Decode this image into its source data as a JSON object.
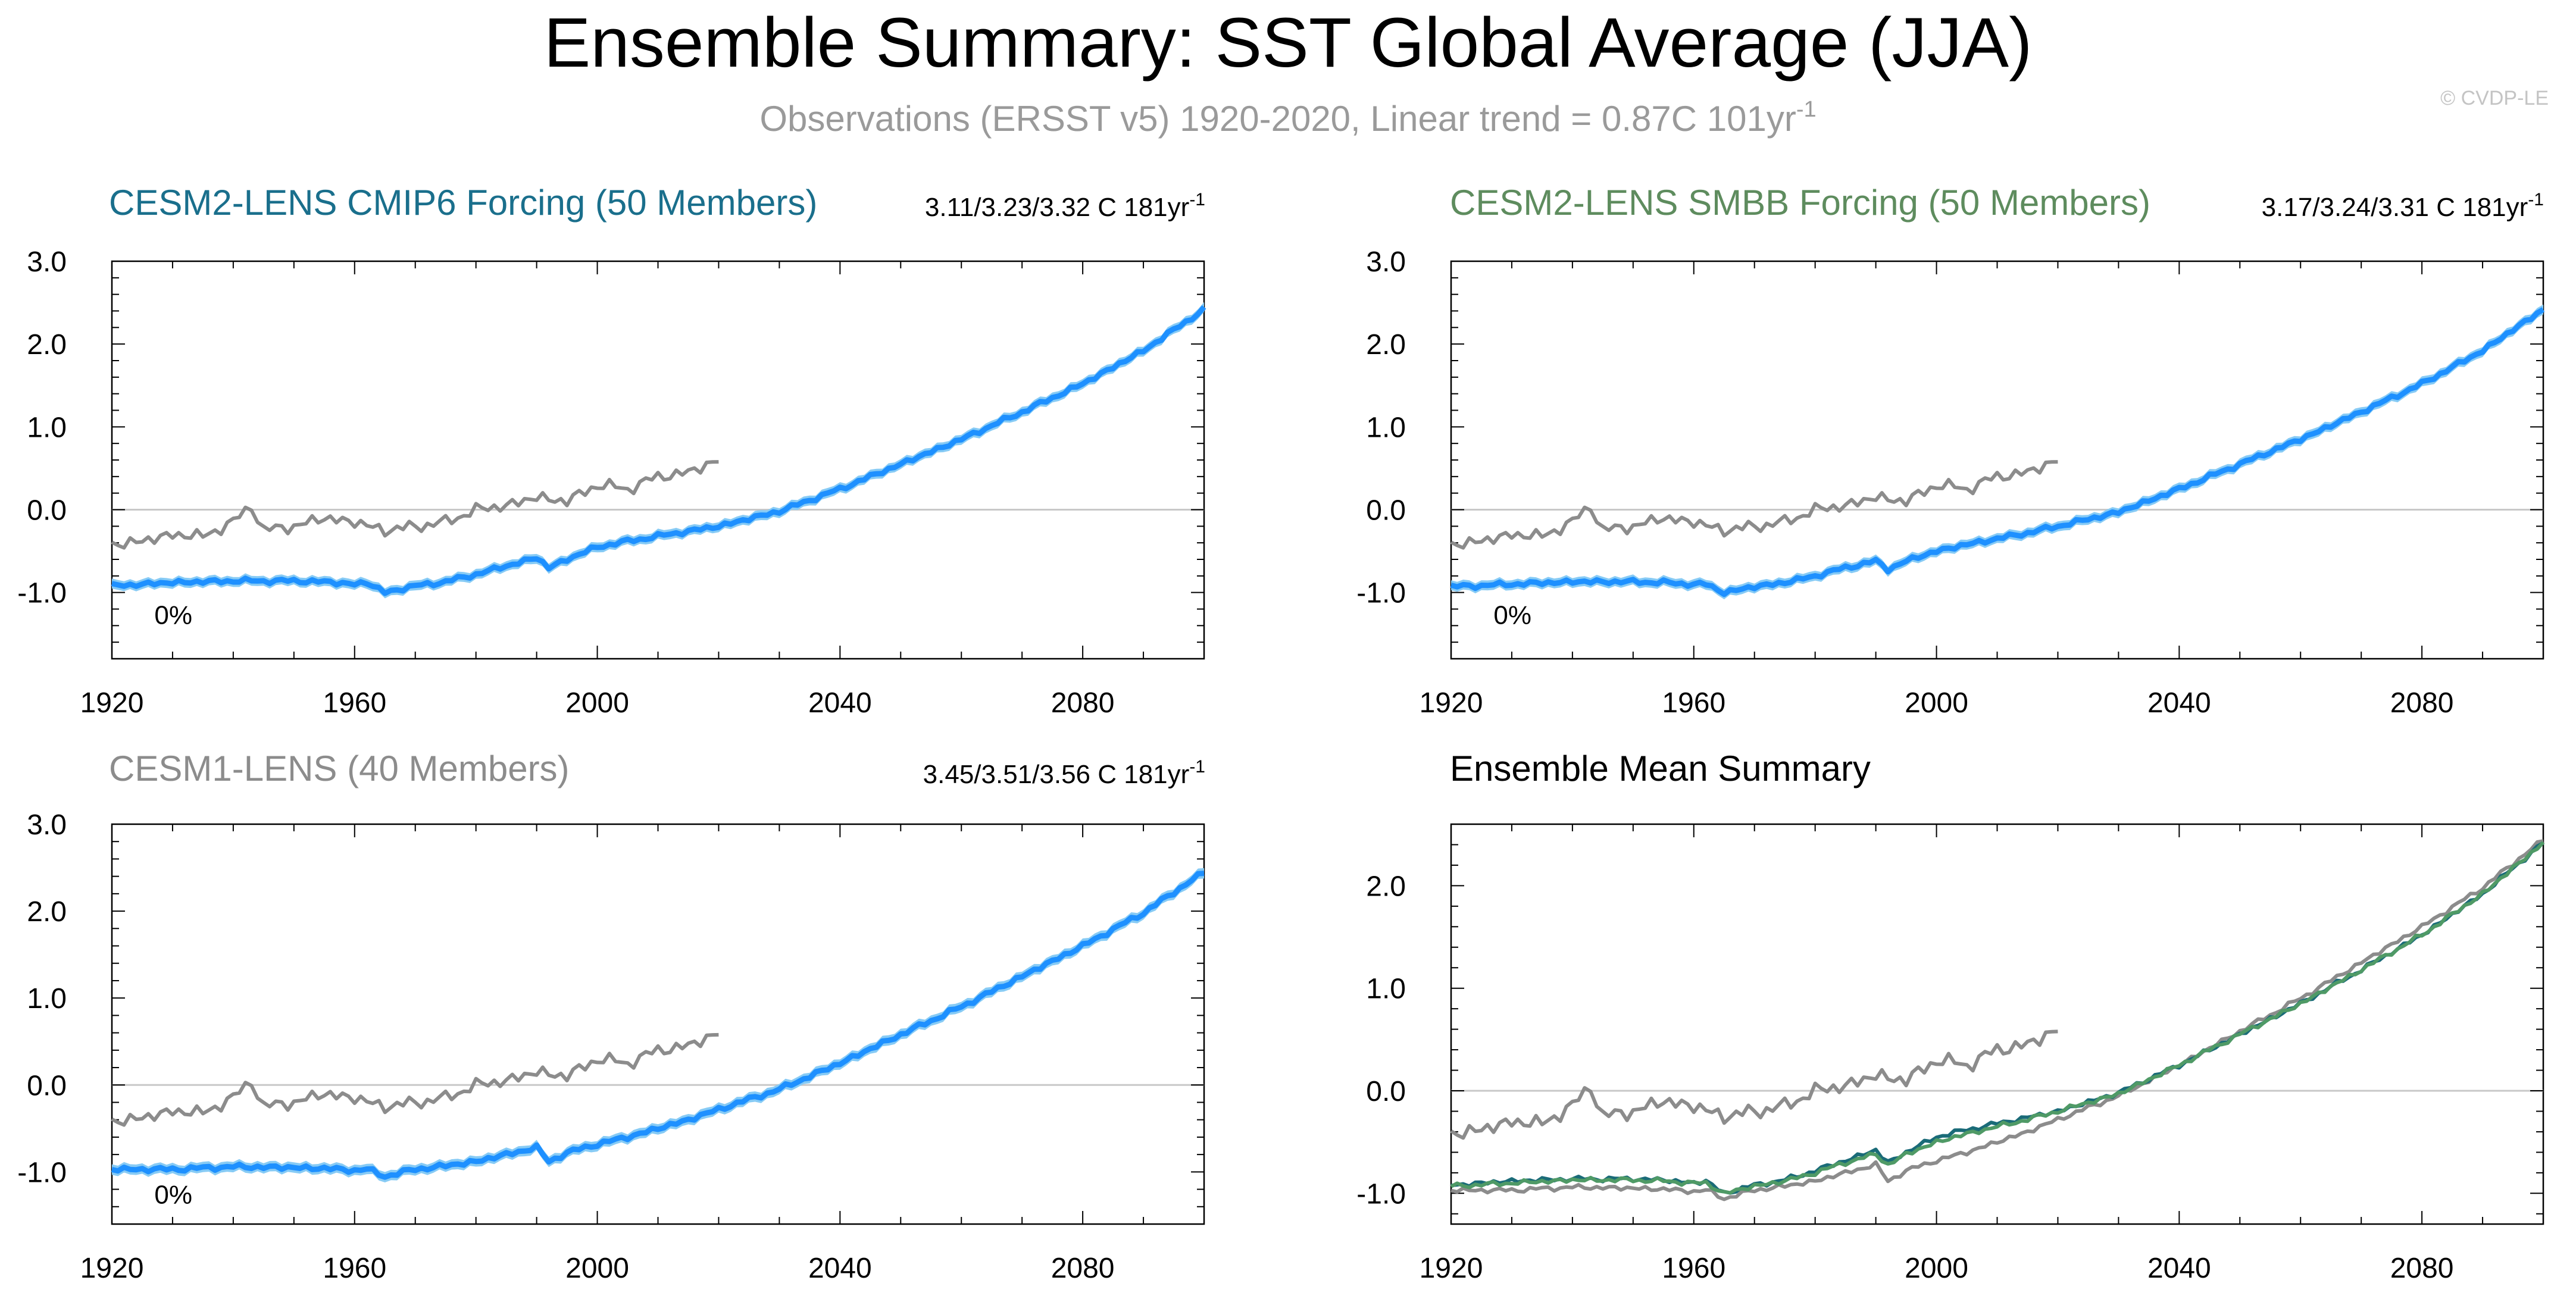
{
  "page": {
    "title": "Ensemble Summary: SST Global Average (JJA)",
    "subtitle": "Observations (ERSST v5) 1920-2020, Linear trend = 0.87C 101yr",
    "subtitle_sup": "-1",
    "watermark": "© CVDP-LE"
  },
  "colors": {
    "obs": "#8c8c8c",
    "ens_band": "#87cbf5",
    "ens_line": "#1e90ff",
    "cmip6_title": "#1a6f8c",
    "smbb_title": "#5e8c5e",
    "cesm1_title": "#8c8c8c",
    "mean_cmip6": "#1a6b78",
    "mean_smbb": "#4f9a66",
    "mean_cesm1": "#8c8c8c",
    "grid_zero": "#c8c8c8"
  },
  "chart_data": [
    {
      "id": "cmip6",
      "type": "line",
      "title": "CESM2-LENS CMIP6 Forcing (50 Members)",
      "trend_text": "3.11/3.23/3.32 C 181yr",
      "trend_sup": "-1",
      "percent_label": "0%",
      "xlim": [
        1920,
        2100
      ],
      "ylim": [
        -1.8,
        3.0
      ],
      "xticks": [
        "1920",
        "1960",
        "2000",
        "2040",
        "2080"
      ],
      "yticks": [
        "3.0",
        "2.0",
        "1.0",
        "0.0",
        "-1.0"
      ],
      "series": [
        {
          "role": "ensemble-mean",
          "x": [
            1920,
            1930,
            1940,
            1950,
            1955,
            1960,
            1962,
            1965,
            1970,
            1975,
            1980,
            1985,
            1990,
            1992,
            1995,
            2000,
            2005,
            2010,
            2015,
            2020,
            2030,
            2040,
            2050,
            2060,
            2070,
            2080,
            2090,
            2100
          ],
          "y": [
            -0.92,
            -0.88,
            -0.86,
            -0.86,
            -0.87,
            -0.9,
            -0.88,
            -1.0,
            -0.92,
            -0.87,
            -0.78,
            -0.68,
            -0.58,
            -0.7,
            -0.6,
            -0.45,
            -0.38,
            -0.32,
            -0.26,
            -0.2,
            -0.02,
            0.25,
            0.55,
            0.85,
            1.18,
            1.52,
            1.92,
            2.42
          ]
        },
        {
          "role": "observations",
          "x": [
            1920,
            1925,
            1930,
            1935,
            1940,
            1943,
            1945,
            1950,
            1955,
            1960,
            1965,
            1970,
            1975,
            1980,
            1985,
            1990,
            1995,
            2000,
            2005,
            2010,
            2015,
            2020
          ],
          "y": [
            -0.42,
            -0.38,
            -0.3,
            -0.32,
            -0.15,
            0.05,
            -0.25,
            -0.2,
            -0.1,
            -0.15,
            -0.25,
            -0.2,
            -0.15,
            0.0,
            0.05,
            0.15,
            0.1,
            0.3,
            0.25,
            0.4,
            0.45,
            0.6
          ]
        }
      ]
    },
    {
      "id": "smbb",
      "type": "line",
      "title": "CESM2-LENS SMBB Forcing (50 Members)",
      "trend_text": "3.17/3.24/3.31 C 181yr",
      "trend_sup": "-1",
      "percent_label": "0%",
      "xlim": [
        1920,
        2100
      ],
      "ylim": [
        -1.8,
        3.0
      ],
      "xticks": [
        "1920",
        "1960",
        "2000",
        "2040",
        "2080"
      ],
      "yticks": [
        "3.0",
        "2.0",
        "1.0",
        "0.0",
        "-1.0"
      ],
      "series": [
        {
          "role": "ensemble-mean",
          "x": [
            1920,
            1930,
            1940,
            1950,
            1955,
            1960,
            1962,
            1965,
            1970,
            1975,
            1980,
            1985,
            1990,
            1992,
            1995,
            2000,
            2005,
            2010,
            2015,
            2020,
            2030,
            2040,
            2050,
            2060,
            2070,
            2080,
            2090,
            2100
          ],
          "y": [
            -0.93,
            -0.9,
            -0.87,
            -0.87,
            -0.88,
            -0.9,
            -0.9,
            -1.0,
            -0.93,
            -0.88,
            -0.8,
            -0.7,
            -0.62,
            -0.72,
            -0.62,
            -0.5,
            -0.42,
            -0.35,
            -0.28,
            -0.2,
            -0.03,
            0.25,
            0.55,
            0.85,
            1.18,
            1.52,
            1.92,
            2.42
          ]
        },
        {
          "role": "observations",
          "x": [
            1920,
            1925,
            1930,
            1935,
            1940,
            1943,
            1945,
            1950,
            1955,
            1960,
            1965,
            1970,
            1975,
            1980,
            1985,
            1990,
            1995,
            2000,
            2005,
            2010,
            2015,
            2020
          ],
          "y": [
            -0.42,
            -0.38,
            -0.3,
            -0.32,
            -0.15,
            0.05,
            -0.25,
            -0.2,
            -0.1,
            -0.15,
            -0.25,
            -0.2,
            -0.15,
            0.0,
            0.05,
            0.15,
            0.1,
            0.3,
            0.25,
            0.4,
            0.45,
            0.6
          ]
        }
      ]
    },
    {
      "id": "cesm1",
      "type": "line",
      "title": "CESM1-LENS (40 Members)",
      "trend_text": "3.45/3.51/3.56 C 181yr",
      "trend_sup": "-1",
      "percent_label": "0%",
      "xlim": [
        1920,
        2100
      ],
      "ylim": [
        -1.6,
        3.0
      ],
      "xticks": [
        "1920",
        "1960",
        "2000",
        "2040",
        "2080"
      ],
      "yticks": [
        "3.0",
        "2.0",
        "1.0",
        "0.0",
        "-1.0"
      ],
      "series": [
        {
          "role": "ensemble-mean",
          "x": [
            1920,
            1930,
            1940,
            1950,
            1955,
            1960,
            1962,
            1965,
            1970,
            1975,
            1980,
            1985,
            1990,
            1992,
            1995,
            2000,
            2005,
            2010,
            2015,
            2020,
            2030,
            2040,
            2050,
            2060,
            2070,
            2080,
            2090,
            2100
          ],
          "y": [
            -0.97,
            -0.97,
            -0.94,
            -0.95,
            -0.96,
            -0.98,
            -0.97,
            -1.05,
            -0.97,
            -0.93,
            -0.88,
            -0.8,
            -0.72,
            -0.88,
            -0.78,
            -0.68,
            -0.6,
            -0.5,
            -0.4,
            -0.28,
            -0.05,
            0.25,
            0.58,
            0.9,
            1.25,
            1.6,
            1.98,
            2.45
          ]
        },
        {
          "role": "observations",
          "x": [
            1920,
            1925,
            1930,
            1935,
            1940,
            1943,
            1945,
            1950,
            1955,
            1960,
            1965,
            1970,
            1975,
            1980,
            1985,
            1990,
            1995,
            2000,
            2005,
            2010,
            2015,
            2020
          ],
          "y": [
            -0.42,
            -0.38,
            -0.3,
            -0.32,
            -0.15,
            0.05,
            -0.25,
            -0.2,
            -0.1,
            -0.15,
            -0.25,
            -0.2,
            -0.15,
            0.0,
            0.05,
            0.15,
            0.1,
            0.3,
            0.25,
            0.4,
            0.45,
            0.6
          ]
        }
      ]
    },
    {
      "id": "mean",
      "type": "line",
      "title": "Ensemble Mean Summary",
      "xlim": [
        1920,
        2100
      ],
      "ylim": [
        -1.3,
        2.6
      ],
      "xticks": [
        "1920",
        "1960",
        "2000",
        "2040",
        "2080"
      ],
      "yticks": [
        "2.0",
        "1.0",
        "0.0",
        "-1.0"
      ],
      "series": [
        {
          "role": "mean-cmip6",
          "x": [
            1920,
            1930,
            1940,
            1950,
            1955,
            1960,
            1962,
            1965,
            1970,
            1975,
            1980,
            1985,
            1990,
            1992,
            1995,
            2000,
            2005,
            2010,
            2015,
            2020,
            2030,
            2040,
            2050,
            2060,
            2070,
            2080,
            2090,
            2100
          ],
          "y": [
            -0.92,
            -0.88,
            -0.86,
            -0.86,
            -0.87,
            -0.9,
            -0.88,
            -1.0,
            -0.92,
            -0.87,
            -0.78,
            -0.68,
            -0.58,
            -0.7,
            -0.6,
            -0.45,
            -0.38,
            -0.32,
            -0.26,
            -0.2,
            -0.02,
            0.25,
            0.55,
            0.85,
            1.18,
            1.52,
            1.92,
            2.42
          ]
        },
        {
          "role": "mean-smbb",
          "x": [
            1920,
            1930,
            1940,
            1950,
            1955,
            1960,
            1962,
            1965,
            1970,
            1975,
            1980,
            1985,
            1990,
            1992,
            1995,
            2000,
            2005,
            2010,
            2015,
            2020,
            2030,
            2040,
            2050,
            2060,
            2070,
            2080,
            2090,
            2100
          ],
          "y": [
            -0.93,
            -0.9,
            -0.87,
            -0.87,
            -0.88,
            -0.9,
            -0.9,
            -1.0,
            -0.93,
            -0.88,
            -0.8,
            -0.7,
            -0.62,
            -0.72,
            -0.62,
            -0.5,
            -0.42,
            -0.35,
            -0.28,
            -0.2,
            -0.03,
            0.25,
            0.55,
            0.85,
            1.18,
            1.52,
            1.92,
            2.42
          ]
        },
        {
          "role": "mean-cesm1",
          "x": [
            1920,
            1930,
            1940,
            1950,
            1955,
            1960,
            1962,
            1965,
            1970,
            1975,
            1980,
            1985,
            1990,
            1992,
            1995,
            2000,
            2005,
            2010,
            2015,
            2020,
            2030,
            2040,
            2050,
            2060,
            2070,
            2080,
            2090,
            2100
          ],
          "y": [
            -0.97,
            -0.97,
            -0.94,
            -0.95,
            -0.96,
            -0.98,
            -0.97,
            -1.05,
            -0.97,
            -0.93,
            -0.88,
            -0.8,
            -0.72,
            -0.88,
            -0.78,
            -0.68,
            -0.6,
            -0.5,
            -0.4,
            -0.28,
            -0.05,
            0.25,
            0.58,
            0.9,
            1.25,
            1.6,
            1.98,
            2.45
          ]
        },
        {
          "role": "observations",
          "x": [
            1920,
            1925,
            1930,
            1935,
            1940,
            1943,
            1945,
            1950,
            1955,
            1960,
            1965,
            1970,
            1975,
            1980,
            1985,
            1990,
            1995,
            2000,
            2005,
            2010,
            2015,
            2020
          ],
          "y": [
            -0.42,
            -0.38,
            -0.3,
            -0.32,
            -0.15,
            0.05,
            -0.25,
            -0.2,
            -0.1,
            -0.15,
            -0.25,
            -0.2,
            -0.15,
            0.0,
            0.05,
            0.15,
            0.1,
            0.3,
            0.25,
            0.4,
            0.45,
            0.6
          ]
        }
      ]
    }
  ]
}
